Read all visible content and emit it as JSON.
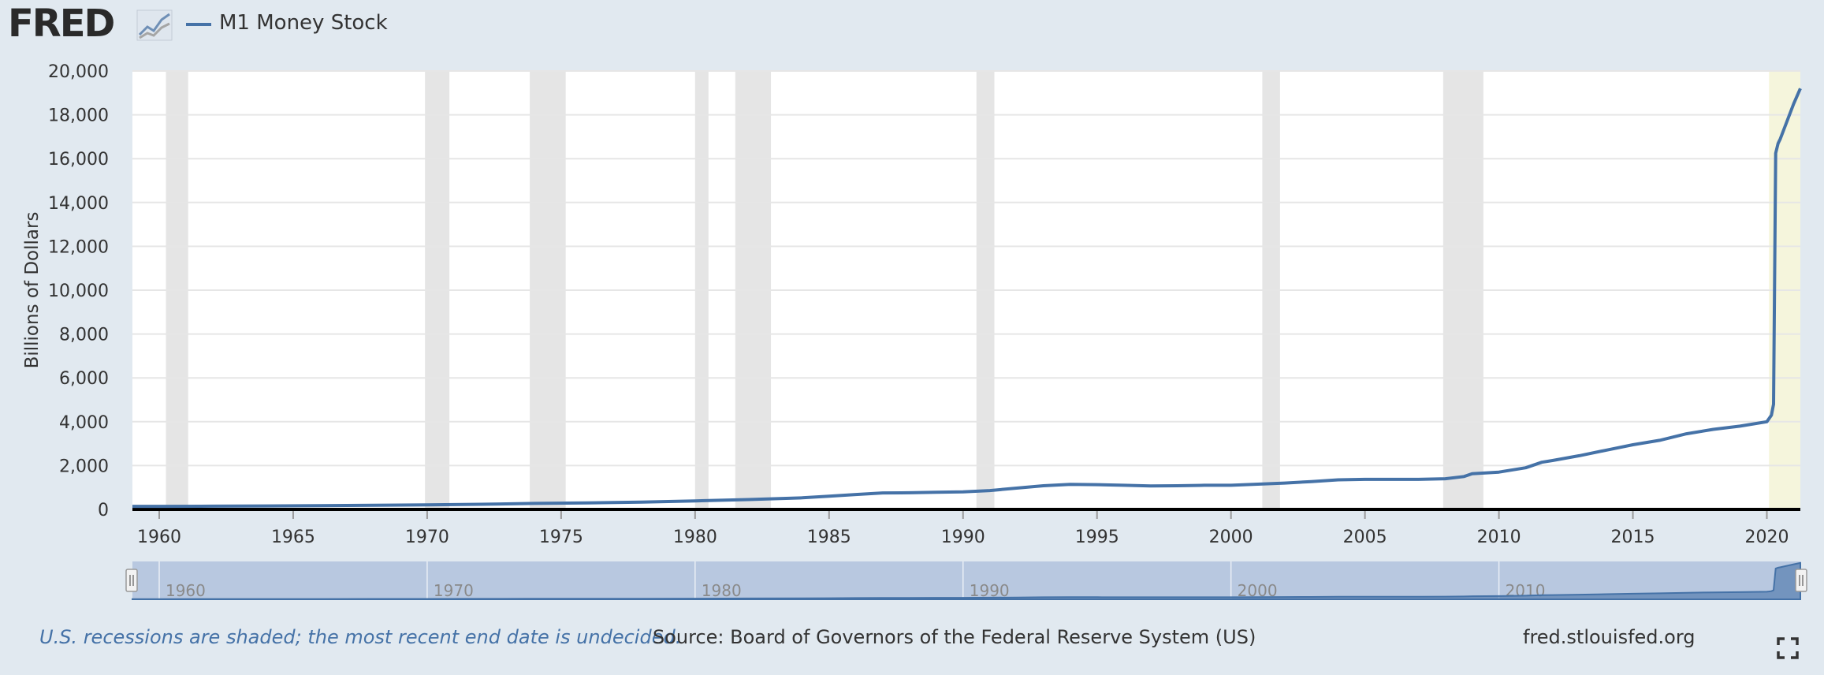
{
  "header": {
    "logo_text": "FRED",
    "logo_icon": "fred-graph-icon",
    "legend_label": "M1 Money Stock",
    "legend_color": "#4572a7"
  },
  "chart_data": {
    "type": "line",
    "title": "M1 Money Stock",
    "xlabel": "",
    "ylabel": "Billions of Dollars",
    "xlim": [
      1959.0,
      2021.25
    ],
    "ylim": [
      0,
      20000
    ],
    "x_ticks": [
      1960,
      1965,
      1970,
      1975,
      1980,
      1985,
      1990,
      1995,
      2000,
      2005,
      2010,
      2015,
      2020
    ],
    "y_ticks": [
      0,
      2000,
      4000,
      6000,
      8000,
      10000,
      12000,
      14000,
      16000,
      18000,
      20000
    ],
    "y_tick_labels": [
      "0",
      "2,000",
      "4,000",
      "6,000",
      "8,000",
      "10,000",
      "12,000",
      "14,000",
      "16,000",
      "18,000",
      "20,000"
    ],
    "series": [
      {
        "name": "M1 Money Stock",
        "color": "#4572a7",
        "x": [
          1959.0,
          1960,
          1962,
          1964,
          1966,
          1968,
          1970,
          1972,
          1974,
          1976,
          1978,
          1980,
          1982,
          1984,
          1985,
          1986,
          1987,
          1988,
          1989,
          1990,
          1991,
          1992,
          1993,
          1994,
          1995,
          1996,
          1997,
          1998,
          1999,
          2000,
          2001,
          2002,
          2003,
          2004,
          2005,
          2006,
          2007,
          2008,
          2008.7,
          2009,
          2010,
          2011,
          2011.6,
          2012,
          2013,
          2014,
          2015,
          2016,
          2017,
          2018,
          2019,
          2020.0,
          2020.17,
          2020.25,
          2020.33,
          2020.42,
          2020.5,
          2020.75,
          2021.0,
          2021.25
        ],
        "values": [
          140,
          141,
          147,
          160,
          172,
          190,
          210,
          235,
          275,
          300,
          335,
          390,
          450,
          530,
          600,
          680,
          750,
          760,
          780,
          800,
          860,
          970,
          1080,
          1140,
          1130,
          1100,
          1070,
          1080,
          1100,
          1100,
          1150,
          1200,
          1270,
          1350,
          1370,
          1370,
          1370,
          1400,
          1500,
          1630,
          1700,
          1900,
          2150,
          2230,
          2450,
          2700,
          2950,
          3150,
          3450,
          3650,
          3800,
          4000,
          4300,
          4800,
          16250,
          16700,
          16900,
          17700,
          18500,
          19200
        ]
      }
    ],
    "recessions": [
      [
        1960.25,
        1961.08
      ],
      [
        1969.92,
        1970.83
      ],
      [
        1973.83,
        1975.17
      ],
      [
        1980.0,
        1980.5
      ],
      [
        1981.5,
        1982.83
      ],
      [
        1990.5,
        1991.17
      ],
      [
        2001.17,
        2001.83
      ],
      [
        2007.92,
        2009.42
      ],
      [
        2020.08,
        2021.25
      ]
    ],
    "recession_undecided_from": 2020.08,
    "navigator_labels": [
      "1960",
      "1970",
      "1980",
      "1990",
      "2000",
      "2010"
    ],
    "navigator_ticks": [
      1960,
      1970,
      1980,
      1990,
      2000,
      2010
    ],
    "colors": {
      "line": "#4572a7",
      "recession": "#e5e5e5",
      "recession_open": "#f5f5dc",
      "grid": "#e6e6e6",
      "navigator_mask": "#b8c8e0"
    }
  },
  "footer": {
    "recession_note": "U.S. recessions are shaded; the most recent end date is undecided.",
    "source": "Source: Board of Governors of the Federal Reserve System (US)",
    "site": "fred.stlouisfed.org",
    "fullscreen_icon": "fullscreen-icon"
  }
}
